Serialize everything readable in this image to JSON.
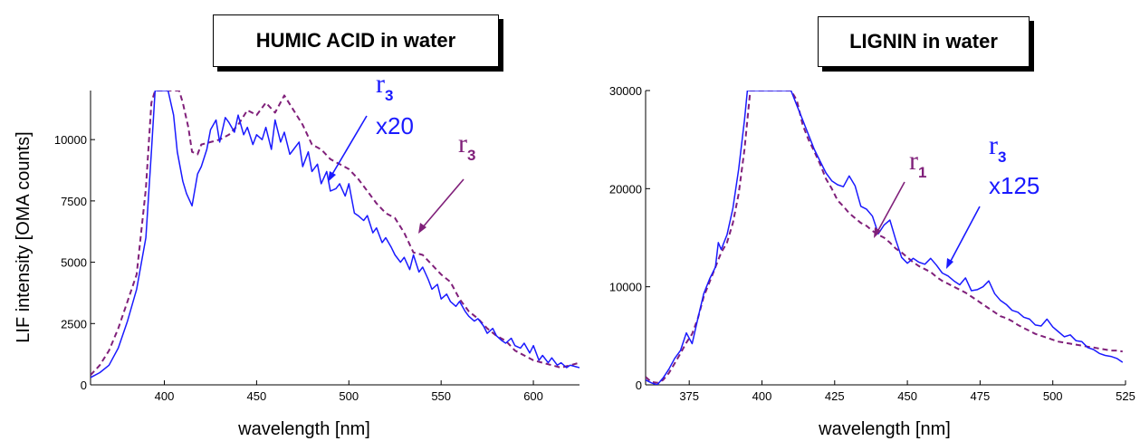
{
  "charts": [
    {
      "title": "HUMIC ACID in water",
      "xlabel": "wavelength [nm]",
      "ylabel": "LIF intensity [OMA counts]",
      "xlim": [
        360,
        625
      ],
      "ylim": [
        0,
        12000
      ],
      "x_ticks": [
        "400",
        "450",
        "500",
        "550",
        "600"
      ],
      "y_ticks": [
        "0",
        "2500",
        "5000",
        "7500",
        "10000"
      ],
      "annotations": [
        {
          "base": "r",
          "sub": "3",
          "extra": "x20",
          "color": "#1a1aff"
        },
        {
          "base": "r",
          "sub": "3",
          "extra": "",
          "color": "#80207a"
        }
      ]
    },
    {
      "title": "LIGNIN in water",
      "xlabel": "wavelength [nm]",
      "ylabel": "",
      "xlim": [
        360,
        525
      ],
      "ylim": [
        0,
        30000
      ],
      "x_ticks": [
        "375",
        "400",
        "425",
        "450",
        "475",
        "500",
        "525"
      ],
      "y_ticks": [
        "0",
        "10000",
        "20000",
        "30000"
      ],
      "annotations": [
        {
          "base": "r",
          "sub": "1",
          "extra": "",
          "color": "#80207a"
        },
        {
          "base": "r",
          "sub": "3",
          "extra": "x125",
          "color": "#1a1aff"
        }
      ]
    }
  ],
  "chart_data": [
    {
      "type": "line",
      "title": "HUMIC ACID in water",
      "xlabel": "wavelength [nm]",
      "ylabel": "LIF intensity [OMA counts]",
      "xlim": [
        360,
        625
      ],
      "ylim": [
        0,
        12000
      ],
      "grid": false,
      "series": [
        {
          "name": "r3 x20",
          "color": "#1a1aff",
          "style": "solid",
          "x": [
            360,
            365,
            370,
            375,
            380,
            385,
            390,
            393,
            395,
            396,
            398,
            400,
            402,
            405,
            407,
            410,
            412,
            415,
            418,
            420,
            423,
            425,
            428,
            430,
            433,
            435,
            438,
            440,
            443,
            445,
            448,
            450,
            453,
            455,
            458,
            460,
            463,
            465,
            468,
            470,
            473,
            475,
            478,
            480,
            483,
            485,
            488,
            490,
            493,
            495,
            498,
            500,
            503,
            505,
            508,
            510,
            513,
            515,
            518,
            520,
            523,
            525,
            528,
            530,
            533,
            535,
            538,
            540,
            543,
            545,
            548,
            550,
            553,
            555,
            558,
            560,
            563,
            565,
            568,
            570,
            573,
            575,
            578,
            580,
            583,
            585,
            588,
            590,
            593,
            595,
            598,
            600,
            603,
            605,
            608,
            610,
            613,
            615,
            618,
            620,
            625
          ],
          "y": [
            300,
            500,
            800,
            1500,
            2600,
            3900,
            6000,
            9500,
            12000,
            12000,
            12000,
            12000,
            12000,
            11000,
            9500,
            8300,
            7800,
            7300,
            8600,
            8900,
            9600,
            10400,
            10800,
            9900,
            10900,
            10700,
            10300,
            11000,
            10200,
            10500,
            9800,
            10200,
            10000,
            10500,
            9600,
            10800,
            9900,
            10300,
            9400,
            9600,
            9900,
            8900,
            9500,
            8700,
            9000,
            8200,
            8700,
            7900,
            8000,
            8200,
            7700,
            8200,
            7000,
            6900,
            6700,
            6900,
            6200,
            6400,
            5800,
            6000,
            5600,
            5300,
            5000,
            5200,
            4700,
            5300,
            4600,
            4800,
            4300,
            3900,
            4100,
            3500,
            3700,
            3400,
            3200,
            3400,
            3000,
            2800,
            2600,
            2700,
            2400,
            2100,
            2300,
            2000,
            1800,
            1700,
            1900,
            1600,
            1500,
            1700,
            1300,
            1600,
            1000,
            1200,
            900,
            1100,
            800,
            900,
            700,
            800,
            700
          ]
        },
        {
          "name": "r3",
          "color": "#80207a",
          "style": "dashed",
          "x": [
            360,
            365,
            370,
            375,
            380,
            385,
            390,
            393,
            395,
            398,
            400,
            403,
            405,
            408,
            410,
            413,
            415,
            418,
            420,
            425,
            430,
            435,
            440,
            445,
            450,
            455,
            460,
            465,
            470,
            475,
            480,
            485,
            490,
            495,
            500,
            505,
            510,
            515,
            520,
            525,
            530,
            535,
            540,
            545,
            550,
            555,
            560,
            565,
            570,
            575,
            580,
            585,
            590,
            595,
            600,
            605,
            610,
            615,
            620,
            625
          ],
          "y": [
            400,
            800,
            1400,
            2300,
            3400,
            4500,
            8000,
            11500,
            12000,
            12000,
            12000,
            12000,
            12000,
            12000,
            11500,
            10500,
            9500,
            9400,
            9800,
            9900,
            10000,
            10200,
            10600,
            11200,
            11000,
            11500,
            11100,
            11800,
            11200,
            10600,
            9800,
            9600,
            9200,
            9000,
            8800,
            8400,
            7900,
            7400,
            7000,
            6800,
            6200,
            5400,
            5300,
            4900,
            4500,
            4200,
            3500,
            3000,
            2700,
            2300,
            2000,
            1800,
            1400,
            1200,
            1000,
            900,
            800,
            700,
            800,
            900
          ]
        }
      ]
    },
    {
      "type": "line",
      "title": "LIGNIN in water",
      "xlabel": "wavelength [nm]",
      "ylabel": "",
      "xlim": [
        360,
        525
      ],
      "ylim": [
        0,
        30000
      ],
      "grid": false,
      "series": [
        {
          "name": "r3 x125",
          "color": "#1a1aff",
          "style": "solid",
          "x": [
            360,
            362,
            364,
            366,
            368,
            370,
            372,
            374,
            376,
            378,
            380,
            382,
            384,
            385,
            386,
            388,
            390,
            392,
            394,
            395,
            396,
            397,
            398,
            399,
            400,
            402,
            404,
            406,
            408,
            410,
            412,
            414,
            416,
            418,
            420,
            422,
            424,
            426,
            428,
            430,
            432,
            434,
            436,
            438,
            440,
            442,
            444,
            446,
            448,
            450,
            452,
            454,
            456,
            458,
            460,
            462,
            464,
            466,
            468,
            470,
            472,
            474,
            476,
            478,
            480,
            482,
            484,
            486,
            488,
            490,
            492,
            494,
            496,
            498,
            500,
            502,
            504,
            506,
            508,
            510,
            512,
            514,
            516,
            518,
            520,
            522,
            524
          ],
          "y": [
            500,
            200,
            0,
            700,
            1600,
            2700,
            3500,
            5300,
            4200,
            6800,
            9300,
            10800,
            12000,
            14500,
            13800,
            15300,
            18000,
            22000,
            27000,
            30000,
            30000,
            30000,
            30000,
            30000,
            30000,
            30000,
            30000,
            30000,
            30000,
            30000,
            28500,
            27000,
            25500,
            24000,
            22800,
            21600,
            20800,
            20400,
            20200,
            21300,
            20300,
            18200,
            17900,
            17200,
            15400,
            16300,
            16800,
            14800,
            13000,
            12400,
            12900,
            12500,
            12300,
            12900,
            12200,
            11400,
            11100,
            10600,
            10200,
            10900,
            9600,
            9700,
            10000,
            10600,
            9300,
            8600,
            8200,
            7600,
            7400,
            6900,
            6700,
            6100,
            6000,
            6700,
            5900,
            5400,
            4900,
            5100,
            4500,
            4400,
            3800,
            3600,
            3200,
            3000,
            2900,
            2700,
            2300
          ]
        },
        {
          "name": "r1",
          "color": "#80207a",
          "style": "dashed",
          "x": [
            360,
            362,
            364,
            366,
            368,
            370,
            372,
            374,
            376,
            378,
            380,
            382,
            384,
            386,
            388,
            390,
            392,
            394,
            396,
            398,
            400,
            402,
            404,
            406,
            408,
            410,
            412,
            414,
            416,
            418,
            420,
            422,
            424,
            426,
            428,
            430,
            432,
            434,
            436,
            438,
            440,
            442,
            444,
            446,
            448,
            450,
            452,
            454,
            456,
            458,
            460,
            462,
            464,
            466,
            468,
            470,
            472,
            474,
            476,
            478,
            480,
            482,
            484,
            486,
            488,
            490,
            492,
            494,
            496,
            498,
            500,
            502,
            504,
            506,
            508,
            510,
            512,
            514,
            516,
            518,
            520,
            522,
            524
          ],
          "y": [
            800,
            300,
            200,
            500,
            1200,
            2200,
            3200,
            4300,
            5200,
            6800,
            9000,
            10500,
            12000,
            13500,
            14500,
            16500,
            19500,
            24000,
            30000,
            30000,
            30000,
            30000,
            30000,
            30000,
            30000,
            30000,
            29000,
            26500,
            25000,
            23800,
            22500,
            21000,
            20000,
            18800,
            18200,
            17500,
            17000,
            16500,
            16200,
            15700,
            15300,
            15000,
            14500,
            13900,
            13500,
            13000,
            12500,
            12100,
            11800,
            11500,
            11000,
            10600,
            10300,
            10000,
            9700,
            9400,
            9000,
            8600,
            8200,
            7800,
            7400,
            7000,
            6800,
            6500,
            6100,
            5800,
            5500,
            5200,
            5000,
            4800,
            4600,
            4400,
            4300,
            4200,
            4100,
            4000,
            3900,
            3800,
            3700,
            3600,
            3500,
            3500,
            3400
          ]
        }
      ]
    }
  ]
}
